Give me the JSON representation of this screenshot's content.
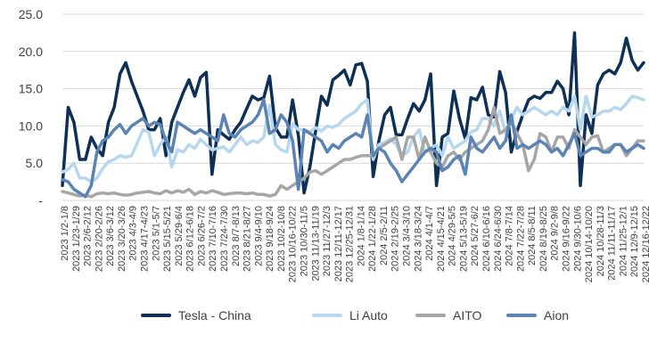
{
  "chart_data": {
    "type": "line",
    "y_ticks": [
      "25.0",
      "20.0",
      "15.0",
      "10.0",
      "5.0",
      "-"
    ],
    "ylim": [
      0,
      25
    ],
    "grid": true,
    "legend_position": "bottom",
    "x_ticks": [
      "2023 1/2-1/8",
      "2023 1/23-1/29",
      "2023 2/6-2/12",
      "2023 2/20-2/26",
      "2023 3/6-3/12",
      "2023 3/20-3/26",
      "2023 4/3-4/9",
      "2023 4/17-4/23",
      "2023 5/1-5/7",
      "2023 5/15-5/21",
      "2023 5/29-6/4",
      "2023 6/12-6/18",
      "2023 6/26-7/2",
      "2023 7/10-7/16",
      "2023 7/24-7/30",
      "2023 8/7-8/13",
      "2023 8/21-8/27",
      "2023 9/4-9/10",
      "2023 9/18-9/24",
      "2023 10/2-10/8",
      "2023 10/16-10/22",
      "2023 10/30-11/5",
      "2023 11/13-11/19",
      "2023 11/27-12/3",
      "2023 12/11-12/17",
      "2023 12/25-12/31",
      "2024 1/8-1/14",
      "2024 1/22-1/28",
      "2024 2/5-2/11",
      "2024 2/19-2/25",
      "2024 3/4-3/10",
      "2024 3/18-3/24",
      "2024 4/1-4/7",
      "2024 4/15-4/21",
      "2024 4/29-5/5",
      "2024 5/13-5/19",
      "2024 5/27-6/2",
      "2024 6/10-6/16",
      "2024 6/24-6/30",
      "2024 7/8-7/14",
      "2024 7/22-7/28",
      "2024 8/5-8/11",
      "2024 8/19-8/25",
      "2024 9/2-9/8",
      "2024 9/16-9/22",
      "2024 9/30-10/6",
      "2024 10/14-10/20",
      "2024 10/28-11/3",
      "2024 11/11-11/17",
      "2024 11/25-12/1",
      "2024 12/9-12/15",
      "2024 12/16-12/22"
    ],
    "x_tick_labels": [
      "2023 1/2-1/8",
      "2023 1/23-1/29",
      "2023 2/6-2/12",
      "2023 2/20-2/26",
      "2023 3/6-3/12",
      "2023 3/20-3/26",
      "2023 4/3-4/9",
      "2023 4/17-4/23",
      "2023 5/1-5/7",
      "2023 5/15-5/21",
      "2023 5/29-6/4",
      "2023 6/12-6/18",
      "2023 6/26-7/2",
      "2023 7/10-7/16",
      "2023 7/24-7/30",
      "2023 8/7-8/13",
      "2023 8/21-8/27",
      "2023 9/4-9/10",
      "2023 9/18-9/24",
      "2023 10/2-10/8",
      "2023 10/16-10/22",
      "2023 10/30-11/5",
      "2023 11/13-11/19",
      "2023 11/27-12/3",
      "2023 12/11-12/17",
      "2023 12/25-12/31",
      "2024 1/8-1/14",
      "2024 1/22-1/28",
      "2024 2/5-2/11",
      "2024 2/19-2/25",
      "2024 3/4-3/10",
      "2024 3/18-3/24",
      "2024 4/1-4/7",
      "2024 4/15-4/21",
      "2024 4/29-5/5",
      "2024 5/13-5/19",
      "2024 5/27-6/2",
      "2024 6/10-6/16",
      "2024 6/24-6/30",
      "2024 7/8-7/14",
      "2024 7/22-7/28",
      "2024 8/5-8/11",
      "2024 8/19-8/25",
      "2024 9/2-9/8",
      "2024 9/16-9/22",
      "2024 9/30-10/6",
      "2024 10/14-10/20",
      "2024 10/28-11/3",
      "2024 11/11-11/17",
      "2024 11/25-12/1",
      "2024 12/9-12/15",
      "2024 12/16-12/22"
    ],
    "series": [
      {
        "name": "Tesla - China",
        "color": "#0e2f56",
        "values": [
          2.0,
          12.5,
          10.5,
          5.5,
          5.5,
          8.5,
          7.0,
          6.0,
          10.5,
          12.5,
          17.0,
          18.5,
          16.0,
          14.0,
          12.0,
          9.5,
          9.5,
          11.0,
          6.0,
          10.5,
          12.5,
          14.5,
          16.2,
          14.0,
          16.5,
          17.2,
          3.5,
          9.5,
          8.8,
          8.2,
          9.5,
          10.5,
          12.3,
          14.0,
          13.5,
          13.8,
          16.7,
          9.8,
          8.5,
          8.5,
          13.5,
          8.7,
          1.0,
          4.5,
          9.3,
          14.0,
          12.8,
          16.2,
          16.8,
          17.5,
          15.5,
          18.2,
          18.4,
          16.0,
          3.2,
          8.0,
          11.5,
          12.5,
          8.8,
          8.8,
          11.0,
          13.0,
          12.0,
          13.5,
          17.0,
          2.0,
          8.5,
          9.0,
          14.7,
          11.0,
          8.3,
          13.8,
          13.5,
          15.2,
          11.5,
          11.2,
          17.3,
          14.5,
          6.5,
          9.3,
          11.5,
          13.5,
          14.0,
          13.7,
          14.5,
          14.5,
          16.0,
          15.0,
          11.5,
          22.5,
          2.0,
          11.5,
          9.0,
          15.5,
          17.0,
          17.5,
          17.0,
          18.5,
          21.8,
          18.8,
          17.5,
          18.5
        ]
      },
      {
        "name": "Li Auto",
        "color": "#b6d7ee",
        "values": [
          3.8,
          4.2,
          5.0,
          3.0,
          3.0,
          2.5,
          3.0,
          4.3,
          5.2,
          5.5,
          6.0,
          5.8,
          6.0,
          7.7,
          9.5,
          9.2,
          6.0,
          7.5,
          8.5,
          4.5,
          6.8,
          6.5,
          7.5,
          7.0,
          8.2,
          7.5,
          6.8,
          7.0,
          7.2,
          6.5,
          7.5,
          8.5,
          7.5,
          8.0,
          7.8,
          8.5,
          12.8,
          7.5,
          6.8,
          6.5,
          10.3,
          9.5,
          9.5,
          9.2,
          9.8,
          9.3,
          10.0,
          9.8,
          10.2,
          11.0,
          11.5,
          12.0,
          13.0,
          13.5,
          5.5,
          7.5,
          7.8,
          8.3,
          7.5,
          6.0,
          6.5,
          8.5,
          9.5,
          6.5,
          7.0,
          7.5,
          6.0,
          8.5,
          7.0,
          7.5,
          8.0,
          9.2,
          9.5,
          11.0,
          11.0,
          10.0,
          12.0,
          9.0,
          11.0,
          12.5,
          11.5,
          12.0,
          12.5,
          12.0,
          11.5,
          12.0,
          11.5,
          12.5,
          12.0,
          14.0,
          9.5,
          14.0,
          11.2,
          11.5,
          12.0,
          12.0,
          12.5,
          12.2,
          13.0,
          14.0,
          13.8,
          13.5
        ]
      },
      {
        "name": "AITO",
        "color": "#a6a6a6",
        "values": [
          1.2,
          1.0,
          0.8,
          0.6,
          0.7,
          0.5,
          0.9,
          1.0,
          0.9,
          1.0,
          0.8,
          0.7,
          0.8,
          1.0,
          1.1,
          1.2,
          1.0,
          0.9,
          1.3,
          1.0,
          1.3,
          1.1,
          1.5,
          0.8,
          1.2,
          1.0,
          1.3,
          1.1,
          0.8,
          0.9,
          1.0,
          1.0,
          0.9,
          1.0,
          0.8,
          0.8,
          0.6,
          0.8,
          2.0,
          1.5,
          2.0,
          2.5,
          3.0,
          3.8,
          4.0,
          3.5,
          4.0,
          4.5,
          5.0,
          5.5,
          5.5,
          5.8,
          6.0,
          6.0,
          6.0,
          7.0,
          7.5,
          8.0,
          8.5,
          5.5,
          8.5,
          8.5,
          5.5,
          8.5,
          6.5,
          5.0,
          4.5,
          6.0,
          6.5,
          5.5,
          6.5,
          7.0,
          7.5,
          8.0,
          9.5,
          12.5,
          9.0,
          9.5,
          10.5,
          9.0,
          7.5,
          4.0,
          5.5,
          9.0,
          8.5,
          6.5,
          8.5,
          8.5,
          7.0,
          9.5,
          8.5,
          7.5,
          8.5,
          8.7,
          6.5,
          7.0,
          7.5,
          7.5,
          6.0,
          7.0,
          8.0,
          8.0
        ]
      },
      {
        "name": "Aion",
        "color": "#5b84b4",
        "values": [
          2.8,
          2.5,
          1.5,
          1.0,
          0.5,
          2.0,
          6.5,
          8.0,
          8.5,
          9.5,
          10.2,
          9.0,
          10.0,
          10.5,
          11.0,
          10.0,
          10.5,
          10.2,
          8.0,
          6.5,
          10.5,
          10.0,
          9.5,
          9.0,
          9.5,
          9.0,
          8.5,
          8.0,
          11.5,
          9.0,
          8.5,
          9.5,
          10.0,
          10.5,
          11.5,
          13.5,
          9.0,
          9.5,
          11.5,
          10.5,
          8.0,
          1.5,
          9.5,
          9.0,
          8.5,
          8.0,
          6.5,
          7.5,
          7.0,
          8.0,
          8.5,
          9.0,
          8.5,
          11.5,
          6.0,
          7.0,
          6.5,
          5.0,
          4.0,
          2.5,
          3.5,
          4.5,
          5.5,
          6.5,
          7.0,
          6.5,
          4.0,
          4.5,
          5.5,
          6.0,
          3.5,
          8.5,
          7.0,
          6.5,
          7.5,
          8.5,
          7.0,
          8.0,
          11.5,
          7.0,
          7.5,
          7.0,
          7.5,
          8.0,
          7.5,
          6.5,
          7.0,
          6.0,
          7.5,
          9.0,
          6.0,
          6.5,
          7.0,
          7.0,
          6.5,
          6.5,
          7.5,
          7.5,
          6.5,
          7.0,
          7.5,
          7.0
        ]
      }
    ]
  }
}
